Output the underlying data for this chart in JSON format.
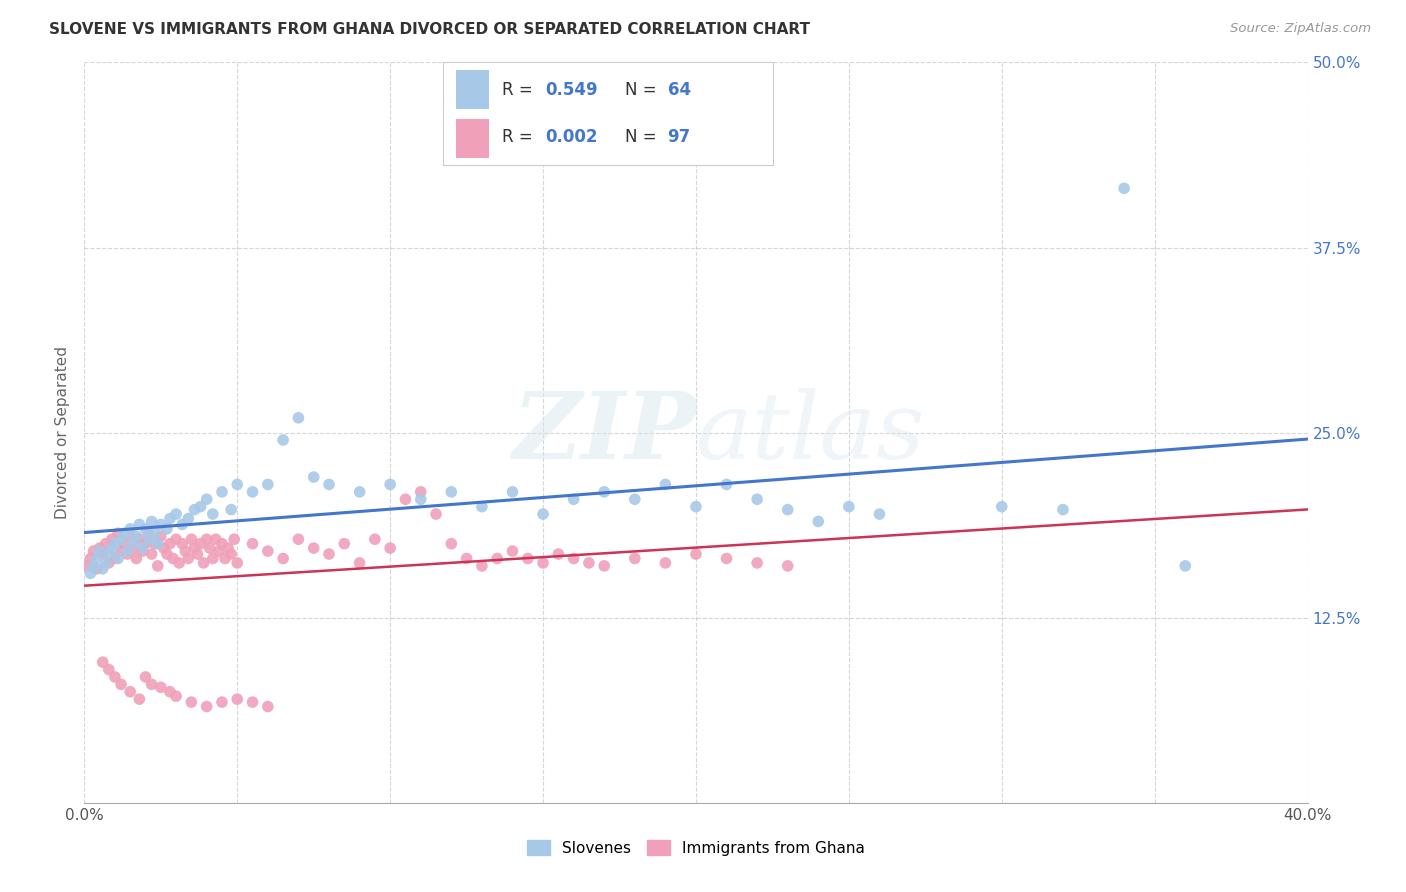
{
  "title": "SLOVENE VS IMMIGRANTS FROM GHANA DIVORCED OR SEPARATED CORRELATION CHART",
  "source": "Source: ZipAtlas.com",
  "ylabel": "Divorced or Separated",
  "xmin": 0.0,
  "xmax": 0.4,
  "ymin": 0.0,
  "ymax": 0.5,
  "xticks": [
    0.0,
    0.05,
    0.1,
    0.15,
    0.2,
    0.25,
    0.3,
    0.35,
    0.4
  ],
  "yticks": [
    0.0,
    0.125,
    0.25,
    0.375,
    0.5
  ],
  "xtick_labels": [
    "0.0%",
    "",
    "",
    "",
    "",
    "",
    "",
    "",
    "40.0%"
  ],
  "ytick_labels": [
    "",
    "12.5%",
    "25.0%",
    "37.5%",
    "50.0%"
  ],
  "background_color": "#ffffff",
  "grid_color": "#cccccc",
  "watermark_zip": "ZIP",
  "watermark_atlas": "atlas",
  "legend_label_1": "Slovenes",
  "legend_label_2": "Immigrants from Ghana",
  "R1": "0.549",
  "N1": "64",
  "R2": "0.002",
  "N2": "97",
  "color_slovene": "#a8c8e8",
  "color_ghana": "#f0a0b8",
  "line_color_slovene": "#4477cc",
  "line_color_ghana": "#cc3355",
  "slovene_x": [
    0.002,
    0.003,
    0.004,
    0.005,
    0.006,
    0.007,
    0.008,
    0.009,
    0.01,
    0.011,
    0.012,
    0.013,
    0.014,
    0.015,
    0.016,
    0.017,
    0.018,
    0.019,
    0.02,
    0.021,
    0.022,
    0.023,
    0.024,
    0.025,
    0.027,
    0.028,
    0.03,
    0.032,
    0.034,
    0.036,
    0.038,
    0.04,
    0.042,
    0.045,
    0.048,
    0.05,
    0.055,
    0.06,
    0.065,
    0.07,
    0.075,
    0.08,
    0.09,
    0.1,
    0.11,
    0.12,
    0.13,
    0.14,
    0.15,
    0.16,
    0.17,
    0.18,
    0.19,
    0.2,
    0.21,
    0.22,
    0.23,
    0.24,
    0.25,
    0.26,
    0.3,
    0.32,
    0.34,
    0.36
  ],
  "slovene_y": [
    0.155,
    0.16,
    0.165,
    0.17,
    0.158,
    0.162,
    0.168,
    0.172,
    0.175,
    0.165,
    0.178,
    0.182,
    0.17,
    0.185,
    0.176,
    0.18,
    0.188,
    0.172,
    0.185,
    0.178,
    0.19,
    0.182,
    0.175,
    0.188,
    0.185,
    0.192,
    0.195,
    0.188,
    0.192,
    0.198,
    0.2,
    0.205,
    0.195,
    0.21,
    0.198,
    0.215,
    0.21,
    0.215,
    0.245,
    0.26,
    0.22,
    0.215,
    0.21,
    0.215,
    0.205,
    0.21,
    0.2,
    0.21,
    0.195,
    0.205,
    0.21,
    0.205,
    0.215,
    0.2,
    0.215,
    0.205,
    0.198,
    0.19,
    0.2,
    0.195,
    0.2,
    0.198,
    0.415,
    0.16
  ],
  "ghana_x": [
    0.001,
    0.002,
    0.003,
    0.004,
    0.005,
    0.006,
    0.007,
    0.008,
    0.009,
    0.01,
    0.011,
    0.012,
    0.013,
    0.014,
    0.015,
    0.016,
    0.017,
    0.018,
    0.019,
    0.02,
    0.021,
    0.022,
    0.023,
    0.024,
    0.025,
    0.026,
    0.027,
    0.028,
    0.029,
    0.03,
    0.031,
    0.032,
    0.033,
    0.034,
    0.035,
    0.036,
    0.037,
    0.038,
    0.039,
    0.04,
    0.041,
    0.042,
    0.043,
    0.044,
    0.045,
    0.046,
    0.047,
    0.048,
    0.049,
    0.05,
    0.055,
    0.06,
    0.065,
    0.07,
    0.075,
    0.08,
    0.085,
    0.09,
    0.095,
    0.1,
    0.105,
    0.11,
    0.115,
    0.12,
    0.125,
    0.13,
    0.135,
    0.14,
    0.145,
    0.15,
    0.155,
    0.16,
    0.165,
    0.17,
    0.18,
    0.19,
    0.2,
    0.21,
    0.22,
    0.23,
    0.006,
    0.008,
    0.01,
    0.012,
    0.015,
    0.018,
    0.02,
    0.022,
    0.025,
    0.028,
    0.03,
    0.035,
    0.04,
    0.045,
    0.05,
    0.055,
    0.06
  ],
  "ghana_y": [
    0.16,
    0.165,
    0.17,
    0.158,
    0.172,
    0.168,
    0.175,
    0.162,
    0.178,
    0.165,
    0.182,
    0.17,
    0.175,
    0.168,
    0.18,
    0.172,
    0.165,
    0.178,
    0.17,
    0.175,
    0.182,
    0.168,
    0.175,
    0.16,
    0.18,
    0.172,
    0.168,
    0.175,
    0.165,
    0.178,
    0.162,
    0.175,
    0.17,
    0.165,
    0.178,
    0.172,
    0.168,
    0.175,
    0.162,
    0.178,
    0.172,
    0.165,
    0.178,
    0.17,
    0.175,
    0.165,
    0.172,
    0.168,
    0.178,
    0.162,
    0.175,
    0.17,
    0.165,
    0.178,
    0.172,
    0.168,
    0.175,
    0.162,
    0.178,
    0.172,
    0.205,
    0.21,
    0.195,
    0.175,
    0.165,
    0.16,
    0.165,
    0.17,
    0.165,
    0.162,
    0.168,
    0.165,
    0.162,
    0.16,
    0.165,
    0.162,
    0.168,
    0.165,
    0.162,
    0.16,
    0.095,
    0.09,
    0.085,
    0.08,
    0.075,
    0.07,
    0.085,
    0.08,
    0.078,
    0.075,
    0.072,
    0.068,
    0.065,
    0.068,
    0.07,
    0.068,
    0.065
  ]
}
